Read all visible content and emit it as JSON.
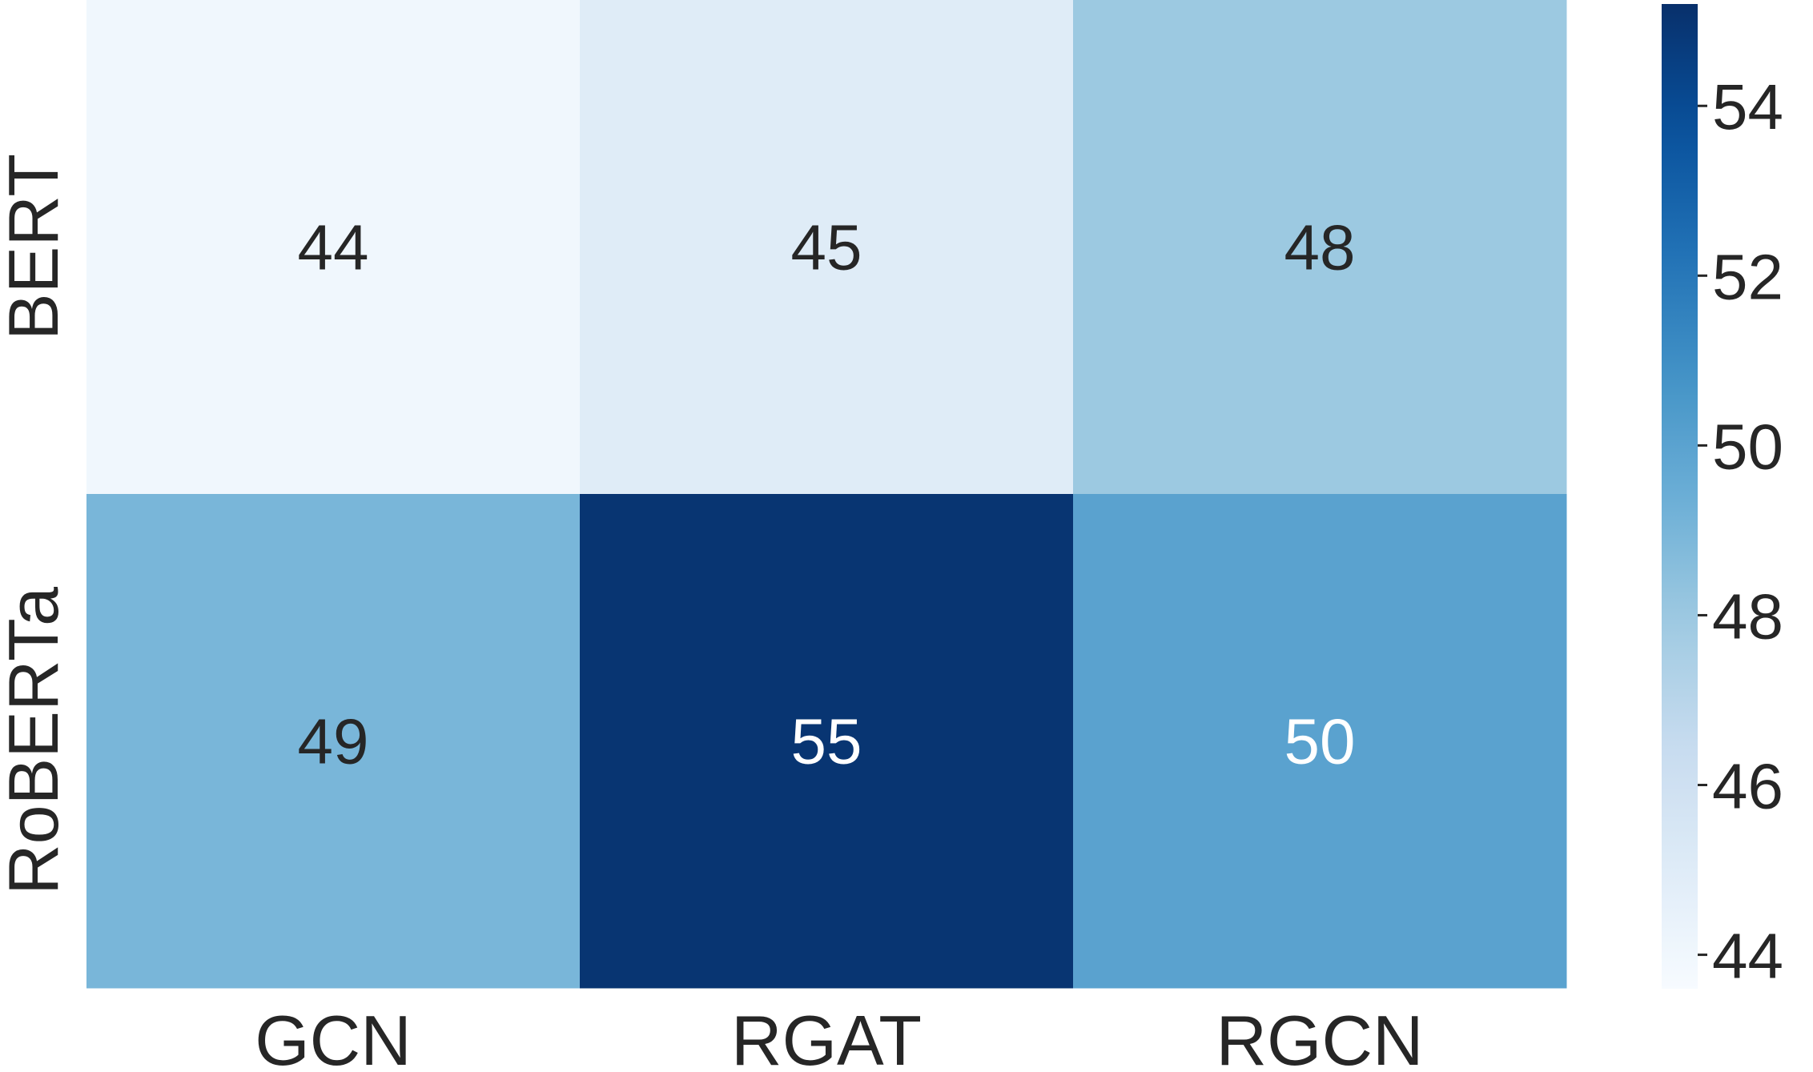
{
  "chart_data": {
    "type": "heatmap",
    "title": "",
    "xlabel": "",
    "ylabel": "",
    "x_categories": [
      "GCN",
      "RGAT",
      "RGCN"
    ],
    "y_categories": [
      "BERT",
      "RoBERTa"
    ],
    "values": [
      [
        44,
        45,
        48
      ],
      [
        49,
        55,
        50
      ]
    ],
    "colormap": "Blues",
    "colorbar": {
      "min": 43.6,
      "max": 55.2,
      "ticks": [
        44,
        46,
        48,
        50,
        52,
        54
      ],
      "tick_labels": [
        "44",
        "46",
        "48",
        "50",
        "52",
        "54"
      ]
    },
    "annotated": true,
    "grid": false,
    "legend": "colorbar-right",
    "colors": {
      "low": "#f7fbff",
      "high": "#08306b",
      "text_dark": "#262626",
      "text_light": "#ffffff"
    }
  }
}
